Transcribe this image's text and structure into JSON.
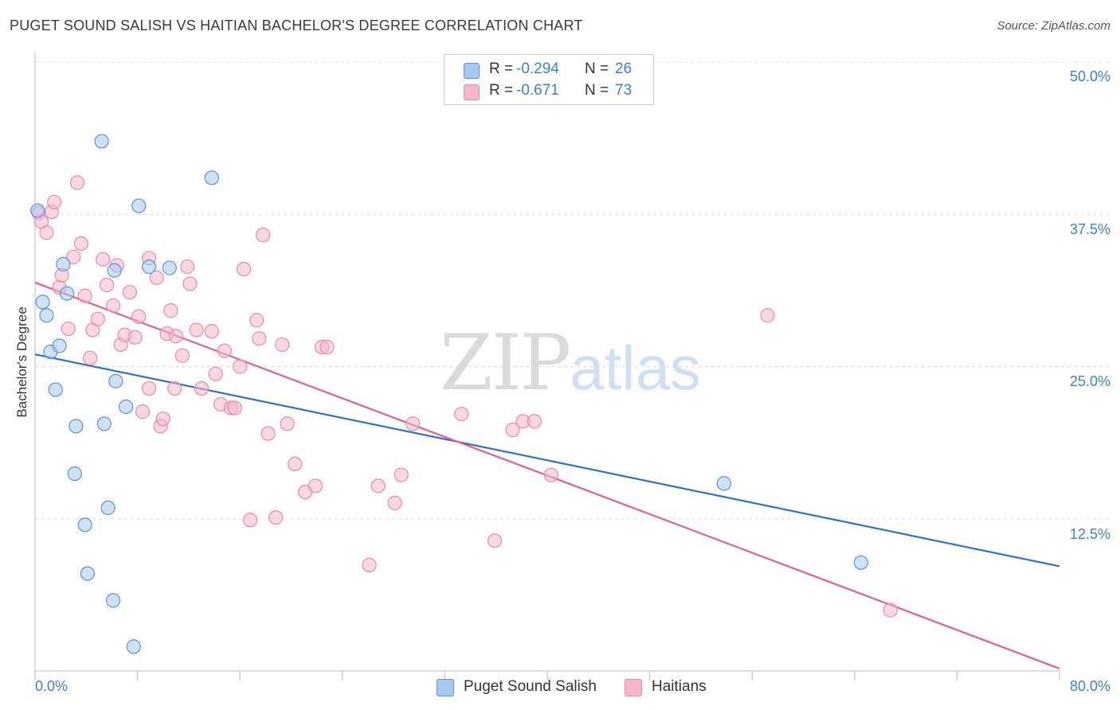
{
  "header": {
    "title": "PUGET SOUND SALISH VS HAITIAN BACHELOR'S DEGREE CORRELATION CHART",
    "source": "Source: ZipAtlas.com"
  },
  "watermark": {
    "zip": "ZIP",
    "atlas": "atlas"
  },
  "legend": {
    "rows": [
      {
        "r_label": "R =",
        "r_value": "-0.294",
        "n_label": "N =",
        "n_value": "26",
        "color": "#a8c8f0"
      },
      {
        "r_label": "R =",
        "r_value": "-0.671",
        "n_label": "N =",
        "n_value": "73",
        "color": "#f5b8cb"
      }
    ]
  },
  "bottom_legend": [
    "Puget Sound Salish",
    "Haitians"
  ],
  "colors": {
    "blue_fill": "#a8c8f0",
    "blue_stroke": "#5b93d8",
    "blue_line": "#2f6fce",
    "pink_fill": "#f5b8cb",
    "pink_stroke": "#e88aa8",
    "pink_line": "#e0608e",
    "tick_text": "#3d7fd1",
    "grid": "#dddddd"
  },
  "chart_data": {
    "type": "scatter",
    "title": "PUGET SOUND SALISH VS HAITIAN BACHELOR'S DEGREE CORRELATION CHART",
    "xlabel": "",
    "ylabel": "Bachelor's Degree",
    "xlim": [
      0,
      80
    ],
    "ylim": [
      0,
      50
    ],
    "x_tick_labels": [
      "0.0%",
      "80.0%"
    ],
    "y_ticks": [
      12.5,
      25.0,
      37.5,
      50.0
    ],
    "y_tick_labels": [
      "12.5%",
      "25.0%",
      "37.5%",
      "50.0%"
    ],
    "grid": true,
    "legend_position": "top-center",
    "series": [
      {
        "name": "Puget Sound Salish",
        "points": [
          [
            0.2,
            37.8
          ],
          [
            0.6,
            30.3
          ],
          [
            0.9,
            29.2
          ],
          [
            1.2,
            26.2
          ],
          [
            1.6,
            23.1
          ],
          [
            1.9,
            26.7
          ],
          [
            2.2,
            33.4
          ],
          [
            2.5,
            31.0
          ],
          [
            3.1,
            16.2
          ],
          [
            3.2,
            20.1
          ],
          [
            3.9,
            12.0
          ],
          [
            4.1,
            8.0
          ],
          [
            5.2,
            43.5
          ],
          [
            5.4,
            20.3
          ],
          [
            5.7,
            13.4
          ],
          [
            6.1,
            5.8
          ],
          [
            6.2,
            32.9
          ],
          [
            6.3,
            23.8
          ],
          [
            7.1,
            21.7
          ],
          [
            7.7,
            2.0
          ],
          [
            8.1,
            38.2
          ],
          [
            8.9,
            33.2
          ],
          [
            10.5,
            33.1
          ],
          [
            13.8,
            40.5
          ],
          [
            53.8,
            15.4
          ],
          [
            64.5,
            8.9
          ]
        ]
      },
      {
        "name": "Haitians",
        "points": [
          [
            0.3,
            37.6
          ],
          [
            0.5,
            36.9
          ],
          [
            0.9,
            36.0
          ],
          [
            1.3,
            37.7
          ],
          [
            1.5,
            38.5
          ],
          [
            1.9,
            31.5
          ],
          [
            2.1,
            32.5
          ],
          [
            2.6,
            28.1
          ],
          [
            3.0,
            34.0
          ],
          [
            3.3,
            40.1
          ],
          [
            3.6,
            35.1
          ],
          [
            3.9,
            30.8
          ],
          [
            4.3,
            25.7
          ],
          [
            4.5,
            28.0
          ],
          [
            4.9,
            28.9
          ],
          [
            5.3,
            33.8
          ],
          [
            5.6,
            31.7
          ],
          [
            6.1,
            30.0
          ],
          [
            6.4,
            33.3
          ],
          [
            6.7,
            26.8
          ],
          [
            7.0,
            27.6
          ],
          [
            7.4,
            31.1
          ],
          [
            7.8,
            27.4
          ],
          [
            8.1,
            29.1
          ],
          [
            8.4,
            21.3
          ],
          [
            8.9,
            33.9
          ],
          [
            8.9,
            23.2
          ],
          [
            9.5,
            32.3
          ],
          [
            9.8,
            20.1
          ],
          [
            10.0,
            20.7
          ],
          [
            10.3,
            27.7
          ],
          [
            10.6,
            29.6
          ],
          [
            10.9,
            23.2
          ],
          [
            11.0,
            27.5
          ],
          [
            11.5,
            25.9
          ],
          [
            11.9,
            33.2
          ],
          [
            12.1,
            31.8
          ],
          [
            12.6,
            28.0
          ],
          [
            13.0,
            23.2
          ],
          [
            13.8,
            27.9
          ],
          [
            14.1,
            24.4
          ],
          [
            14.5,
            21.9
          ],
          [
            14.8,
            26.3
          ],
          [
            15.3,
            21.6
          ],
          [
            15.6,
            21.6
          ],
          [
            16.0,
            25.0
          ],
          [
            16.3,
            33.0
          ],
          [
            16.8,
            12.4
          ],
          [
            17.3,
            28.8
          ],
          [
            17.5,
            27.3
          ],
          [
            17.8,
            35.8
          ],
          [
            18.2,
            19.5
          ],
          [
            18.8,
            12.6
          ],
          [
            19.3,
            26.8
          ],
          [
            19.7,
            20.3
          ],
          [
            20.3,
            17.0
          ],
          [
            21.1,
            14.7
          ],
          [
            21.9,
            15.2
          ],
          [
            22.4,
            26.6
          ],
          [
            22.8,
            26.6
          ],
          [
            26.1,
            8.7
          ],
          [
            26.8,
            15.2
          ],
          [
            28.1,
            13.8
          ],
          [
            28.6,
            16.1
          ],
          [
            29.5,
            20.3
          ],
          [
            33.3,
            21.1
          ],
          [
            35.9,
            10.7
          ],
          [
            37.3,
            19.8
          ],
          [
            38.1,
            20.5
          ],
          [
            39.0,
            20.5
          ],
          [
            40.3,
            16.1
          ],
          [
            57.2,
            29.2
          ],
          [
            66.8,
            5.0
          ]
        ]
      }
    ],
    "trendlines": [
      {
        "series": "Puget Sound Salish",
        "x": [
          0,
          80
        ],
        "y": [
          26.0,
          8.6
        ]
      },
      {
        "series": "Haitians",
        "x": [
          0,
          80
        ],
        "y": [
          31.9,
          0.2
        ]
      }
    ]
  }
}
